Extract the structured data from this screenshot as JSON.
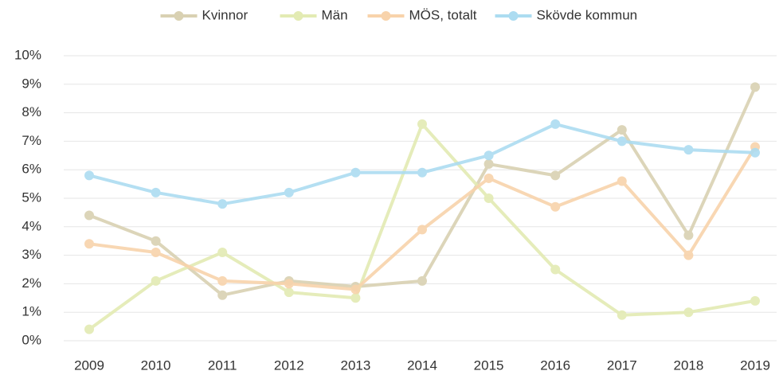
{
  "chart_data": {
    "type": "line",
    "categories": [
      "2009",
      "2010",
      "2011",
      "2012",
      "2013",
      "2014",
      "2015",
      "2016",
      "2017",
      "2018",
      "2019"
    ],
    "series": [
      {
        "name": "Kvinnor",
        "color": "#d9d1b2",
        "values": [
          4.4,
          3.5,
          1.6,
          2.1,
          1.9,
          2.1,
          6.2,
          5.8,
          7.4,
          3.7,
          8.9
        ]
      },
      {
        "name": "Män",
        "color": "#e3ebb3",
        "values": [
          0.4,
          2.1,
          3.1,
          1.7,
          1.5,
          7.6,
          5.0,
          2.5,
          0.9,
          1.0,
          1.4
        ]
      },
      {
        "name": "MÖS, totalt",
        "color": "#f8d3ab",
        "values": [
          3.4,
          3.1,
          2.1,
          2.0,
          1.8,
          3.9,
          5.7,
          4.7,
          5.6,
          3.0,
          6.8
        ]
      },
      {
        "name": "Skövde kommun",
        "color": "#acdcf1",
        "values": [
          5.8,
          5.2,
          4.8,
          5.2,
          5.9,
          5.9,
          6.5,
          7.6,
          7.0,
          6.7,
          6.6
        ]
      }
    ],
    "ylim": [
      0,
      10
    ],
    "yticks": [
      {
        "value": 0,
        "label": "0%"
      },
      {
        "value": 1,
        "label": "1%"
      },
      {
        "value": 2,
        "label": "2%"
      },
      {
        "value": 3,
        "label": "3%"
      },
      {
        "value": 4,
        "label": "4%"
      },
      {
        "value": 5,
        "label": "5%"
      },
      {
        "value": 6,
        "label": "6%"
      },
      {
        "value": 7,
        "label": "7%"
      },
      {
        "value": 8,
        "label": "8%"
      },
      {
        "value": 9,
        "label": "9%"
      },
      {
        "value": 10,
        "label": "10%"
      }
    ],
    "grid": true,
    "legend": "top"
  }
}
